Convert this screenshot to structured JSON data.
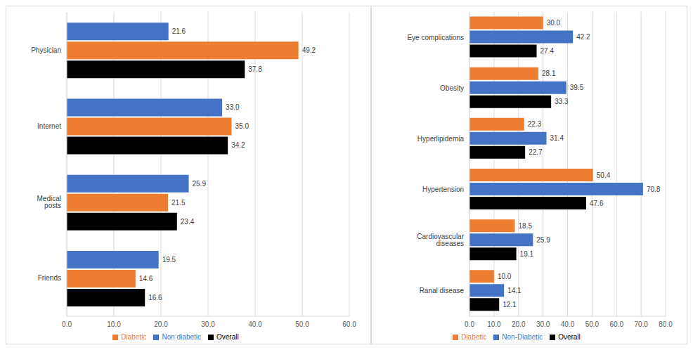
{
  "chart_data": [
    {
      "type": "bar",
      "orientation": "horizontal",
      "grid": true,
      "legend": "bottom",
      "data_labels": true,
      "categories": [
        "Physician",
        "Internet",
        "Medical posts",
        "Friends"
      ],
      "series": [
        {
          "name": "Non diabetic",
          "color": "#4472c4",
          "values": [
            21.6,
            33.0,
            25.9,
            19.5
          ],
          "value_labels": [
            "21.6",
            "33.0",
            "25.9",
            "19.5"
          ]
        },
        {
          "name": "Diabetic",
          "color": "#ed7d31",
          "values": [
            49.2,
            35.0,
            21.5,
            14.6
          ],
          "value_labels": [
            "49.2",
            "35.0",
            "21.5",
            "14.6"
          ]
        },
        {
          "name": "Overall",
          "color": "#000000",
          "values": [
            37.8,
            34.2,
            23.4,
            16.6
          ],
          "value_labels": [
            "37.8",
            "34.2",
            "23.4",
            "16.6"
          ]
        }
      ],
      "xlim": [
        0,
        60
      ],
      "xticks": [
        {
          "value": 0,
          "label": "0.0"
        },
        {
          "value": 10,
          "label": "10.0"
        },
        {
          "value": 20,
          "label": "20.0"
        },
        {
          "value": 30,
          "label": "30.0"
        },
        {
          "value": 40,
          "label": "40.0"
        },
        {
          "value": 50,
          "label": "50.0"
        },
        {
          "value": 60,
          "label": "60.0"
        }
      ]
    },
    {
      "type": "bar",
      "orientation": "horizontal",
      "grid": true,
      "legend": "bottom",
      "data_labels": true,
      "categories": [
        "Eye complications",
        "Obesity",
        "Hyperlipidemia",
        "Hypertension",
        "Cardiovascular diseases",
        "Ranal disease"
      ],
      "series": [
        {
          "name": "Diabetic",
          "color": "#ed7d31",
          "values": [
            30.0,
            28.1,
            22.3,
            50.4,
            18.5,
            10.0
          ],
          "value_labels": [
            "30.0",
            "28.1",
            "22.3",
            "50.4",
            "18.5",
            "10.0"
          ]
        },
        {
          "name": "Non-Diabetic",
          "color": "#4472c4",
          "values": [
            42.2,
            39.5,
            31.4,
            70.8,
            25.9,
            14.1
          ],
          "value_labels": [
            "42.2",
            "39.5",
            "31.4",
            "70.8",
            "25.9",
            "14.1"
          ]
        },
        {
          "name": "Overall",
          "color": "#000000",
          "values": [
            27.4,
            33.3,
            22.7,
            47.6,
            19.1,
            12.1
          ],
          "value_labels": [
            "27.4",
            "33.3",
            "22.7",
            "47.6",
            "19.1",
            "12.1"
          ]
        }
      ],
      "xlim": [
        0,
        80
      ],
      "xticks": [
        {
          "value": 0,
          "label": "0.0"
        },
        {
          "value": 10,
          "label": "10.0"
        },
        {
          "value": 20,
          "label": "20.0"
        },
        {
          "value": 30,
          "label": "30.0"
        },
        {
          "value": 40,
          "label": "40.0"
        },
        {
          "value": 50,
          "label": "50.0"
        },
        {
          "value": 60,
          "label": "60.0"
        },
        {
          "value": 70,
          "label": "70.0"
        },
        {
          "value": 80,
          "label": "80.0"
        }
      ]
    }
  ]
}
